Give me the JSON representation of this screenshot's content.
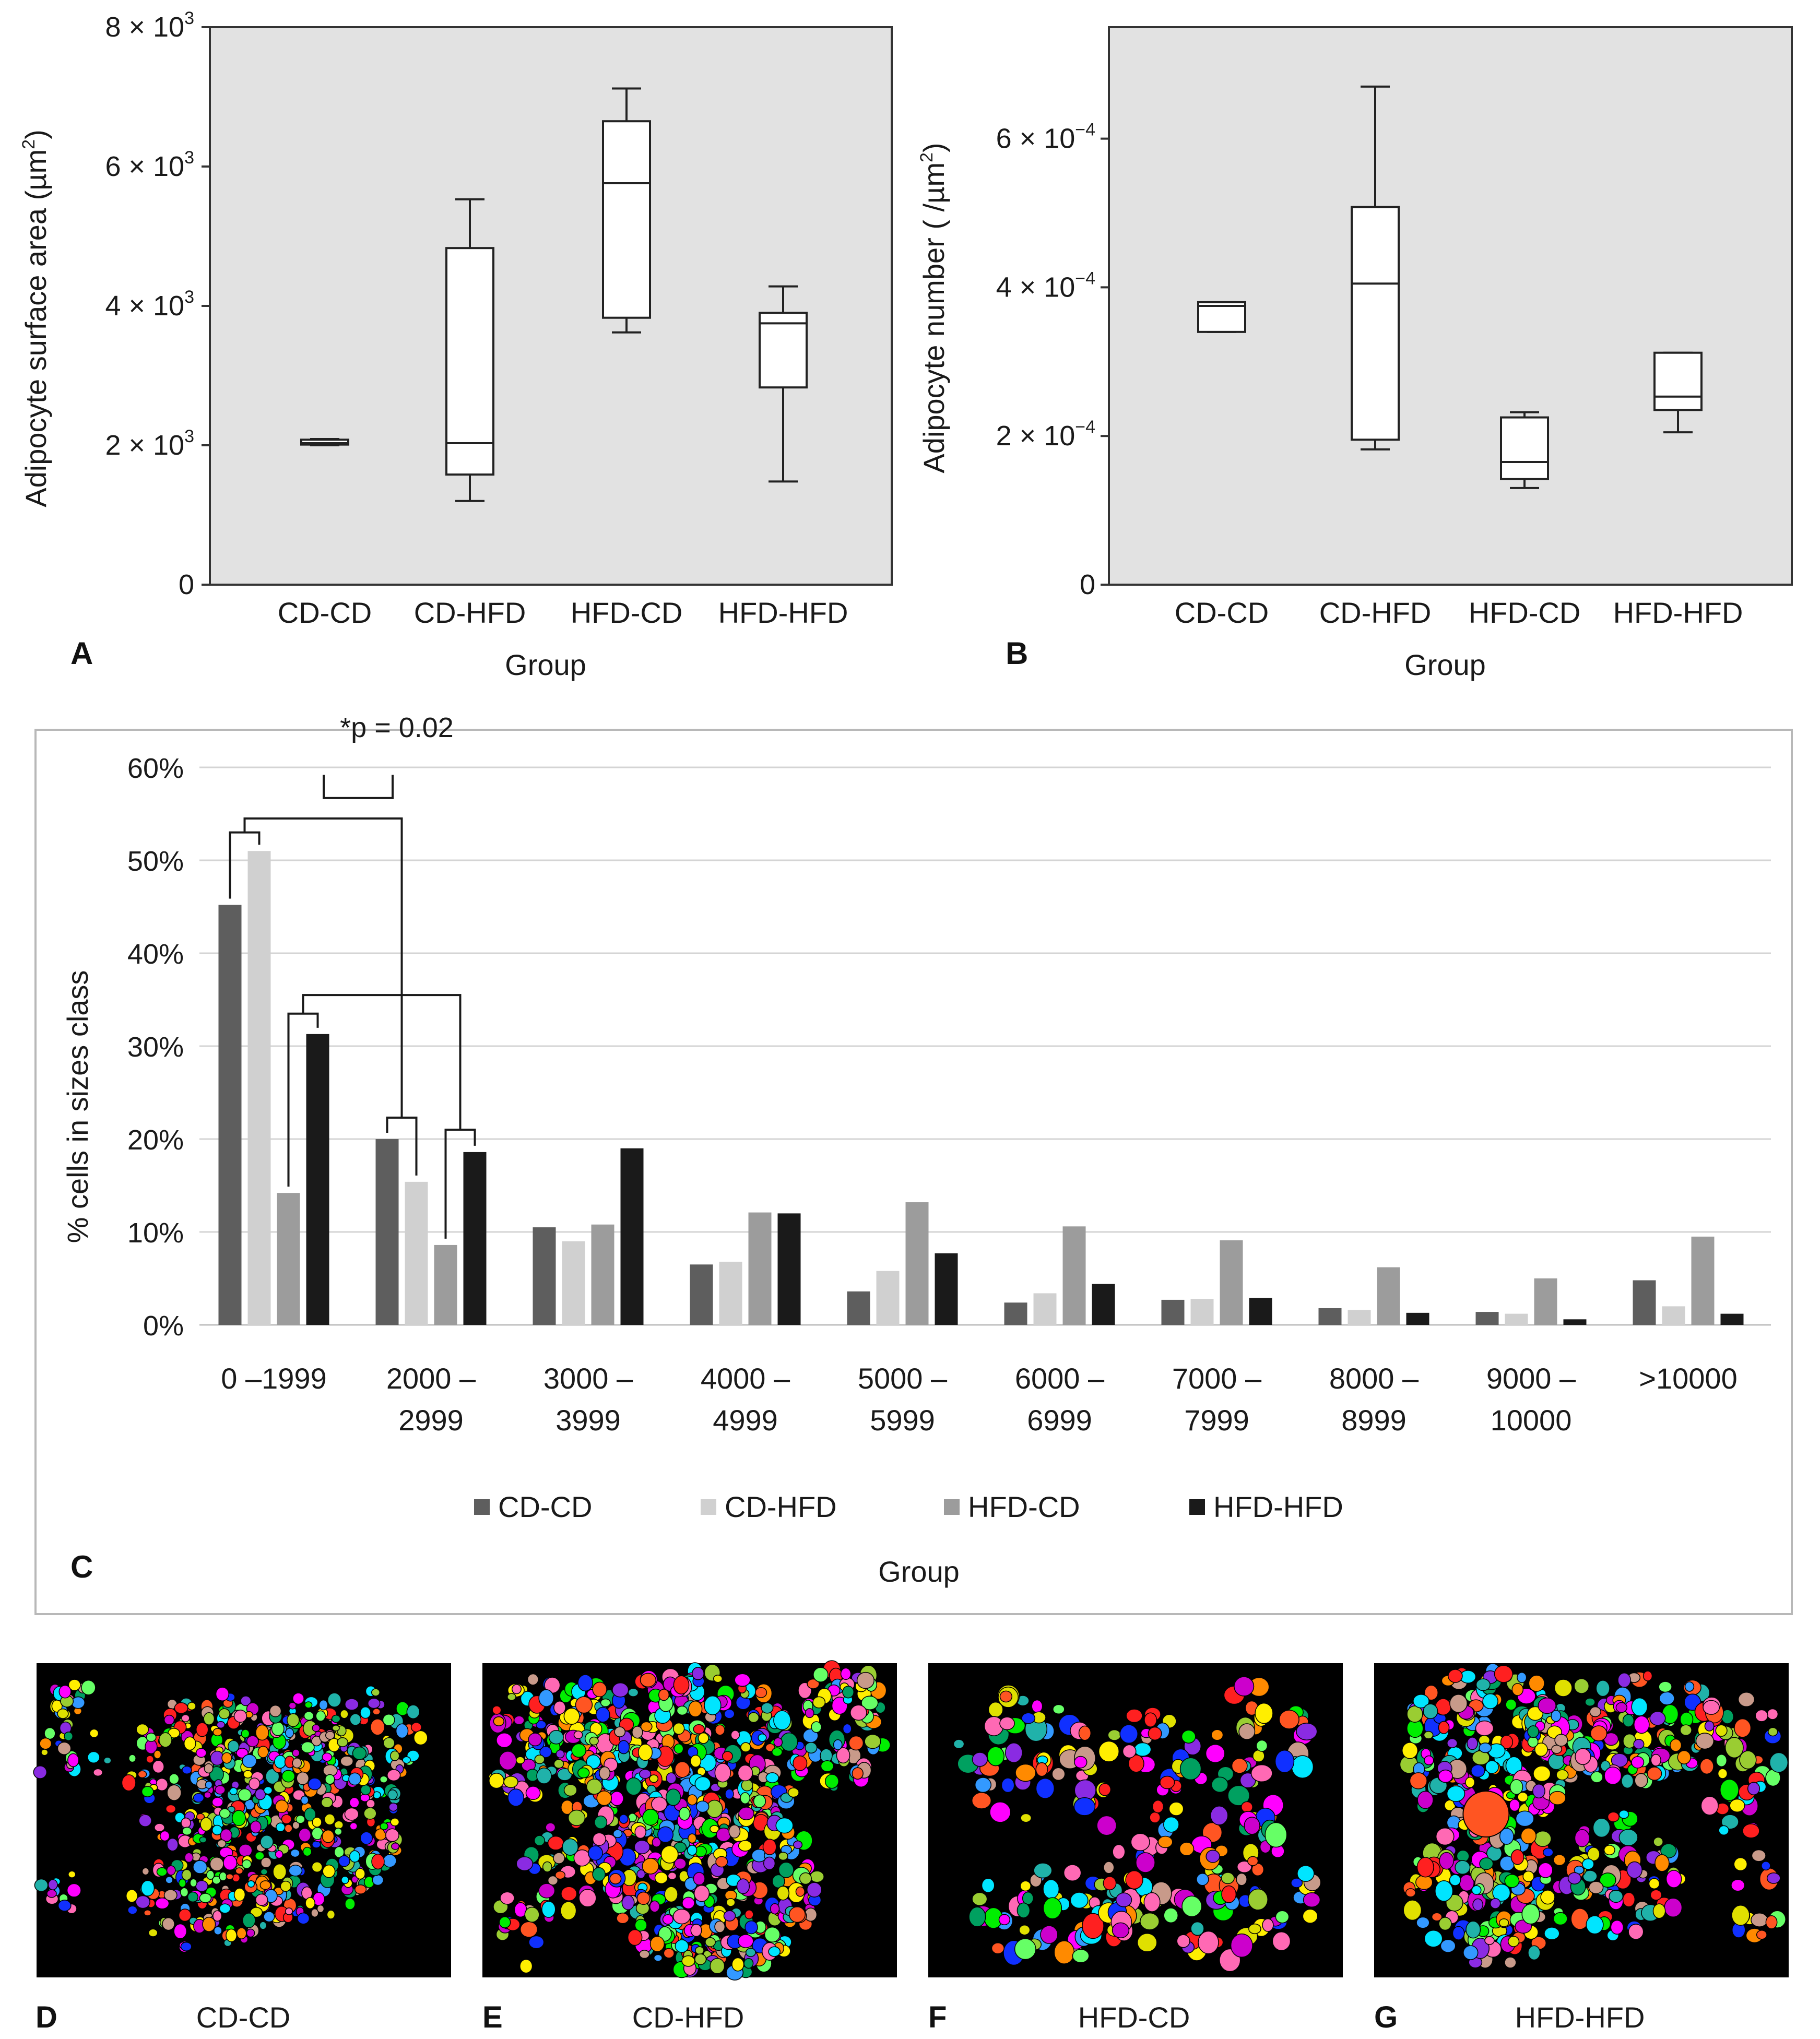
{
  "chart_data": [
    {
      "panel": "A",
      "type": "boxplot",
      "xlabel": "Group",
      "ylabel": "Adipocyte surface area (µm²)",
      "ylabel_main": "Adipocyte surface area (µm",
      "ylabel_sup": "2",
      "ylabel_close": ")",
      "ylim": [
        0,
        8000
      ],
      "yticks": [
        {
          "value": 0,
          "base": "0",
          "exp": ""
        },
        {
          "value": 2000,
          "base": "2 × 10",
          "exp": "3"
        },
        {
          "value": 4000,
          "base": "4 × 10",
          "exp": "3"
        },
        {
          "value": 6000,
          "base": "6 × 10",
          "exp": "3"
        },
        {
          "value": 8000,
          "base": "8 × 10",
          "exp": "3"
        }
      ],
      "categories": [
        "CD-CD",
        "CD-HFD",
        "HFD-CD",
        "HFD-HFD"
      ],
      "boxes": [
        {
          "min": 2000,
          "q1": 2010,
          "median": 2030,
          "q3": 2080,
          "max": 2090
        },
        {
          "min": 1200,
          "q1": 1580,
          "median": 2030,
          "q3": 4830,
          "max": 5530
        },
        {
          "min": 3620,
          "q1": 3830,
          "median": 5760,
          "q3": 6650,
          "max": 7120
        },
        {
          "min": 1480,
          "q1": 2830,
          "median": 3750,
          "q3": 3900,
          "max": 4280
        }
      ]
    },
    {
      "panel": "B",
      "type": "boxplot",
      "xlabel": "Group",
      "ylabel": "Adipocyte number ( /µm²)",
      "ylabel_main": "Adipocyte number ( /µm",
      "ylabel_sup": "2",
      "ylabel_close": ")",
      "ylim": [
        0,
        0.00075
      ],
      "yticks": [
        {
          "value": 0,
          "base": "0",
          "exp": ""
        },
        {
          "value": 0.0002,
          "base": "2 × 10",
          "exp": "−4"
        },
        {
          "value": 0.0004,
          "base": "4 × 10",
          "exp": "−4"
        },
        {
          "value": 0.0006,
          "base": "6 × 10",
          "exp": "−4"
        }
      ],
      "categories": [
        "CD-CD",
        "CD-HFD",
        "HFD-CD",
        "HFD-HFD"
      ],
      "boxes": [
        {
          "min": 0.00034,
          "q1": 0.00034,
          "median": 0.000375,
          "q3": 0.00038,
          "max": 0.00038
        },
        {
          "min": 0.000182,
          "q1": 0.000195,
          "median": 0.000405,
          "q3": 0.000508,
          "max": 0.00067
        },
        {
          "min": 0.00013,
          "q1": 0.000142,
          "median": 0.000165,
          "q3": 0.000225,
          "max": 0.000232
        },
        {
          "min": 0.000205,
          "q1": 0.000235,
          "median": 0.000253,
          "q3": 0.000312,
          "max": 0.000312
        }
      ]
    },
    {
      "panel": "C",
      "type": "bar",
      "xlabel": "Group",
      "ylabel": "% cells in sizes class",
      "ylim": [
        0,
        60
      ],
      "yticks": [
        "0%",
        "10%",
        "20%",
        "30%",
        "40%",
        "50%",
        "60%"
      ],
      "categories": [
        {
          "line1": "0 –1999",
          "line2": ""
        },
        {
          "line1": "2000 –",
          "line2": "2999"
        },
        {
          "line1": "3000 –",
          "line2": "3999"
        },
        {
          "line1": "4000 –",
          "line2": "4999"
        },
        {
          "line1": "5000 –",
          "line2": "5999"
        },
        {
          "line1": "6000 –",
          "line2": "6999"
        },
        {
          "line1": "7000 –",
          "line2": "7999"
        },
        {
          "line1": "8000 –",
          "line2": "8999"
        },
        {
          "line1": "9000 –",
          "line2": "10000"
        },
        {
          "line1": ">10000",
          "line2": ""
        }
      ],
      "series": [
        {
          "name": "CD-CD",
          "color": "#5e5e5e",
          "values": [
            45.2,
            20.0,
            10.5,
            6.5,
            3.6,
            2.4,
            2.7,
            1.8,
            1.4,
            4.8
          ]
        },
        {
          "name": "CD-HFD",
          "color": "#d0d0d0",
          "values": [
            51.0,
            15.4,
            9.0,
            6.8,
            5.8,
            3.4,
            2.8,
            1.6,
            1.2,
            2.0
          ]
        },
        {
          "name": "HFD-CD",
          "color": "#9c9c9c",
          "values": [
            14.2,
            8.6,
            10.8,
            12.1,
            13.2,
            10.6,
            9.1,
            6.2,
            5.0,
            9.5
          ]
        },
        {
          "name": "HFD-HFD",
          "color": "#1a1a1a",
          "values": [
            31.3,
            18.6,
            19.0,
            12.0,
            7.7,
            4.4,
            2.9,
            1.3,
            0.6,
            1.2
          ]
        }
      ],
      "annotation": "*p = 0.02"
    }
  ],
  "images": [
    {
      "letter": "D",
      "caption": "CD-CD"
    },
    {
      "letter": "E",
      "caption": "CD-HFD"
    },
    {
      "letter": "F",
      "caption": "HFD-CD"
    },
    {
      "letter": "G",
      "caption": "HFD-HFD"
    }
  ],
  "cell_colors": [
    "#ff2020",
    "#00ee00",
    "#1030ff",
    "#ffee00",
    "#ff00ff",
    "#00e5ff",
    "#ff8a00",
    "#8a2be2",
    "#20b2aa",
    "#9acd32",
    "#ff69b4",
    "#00a060",
    "#e0e000",
    "#ff5522",
    "#3399ff",
    "#66ff66",
    "#cc00cc",
    "#c89a8a"
  ]
}
